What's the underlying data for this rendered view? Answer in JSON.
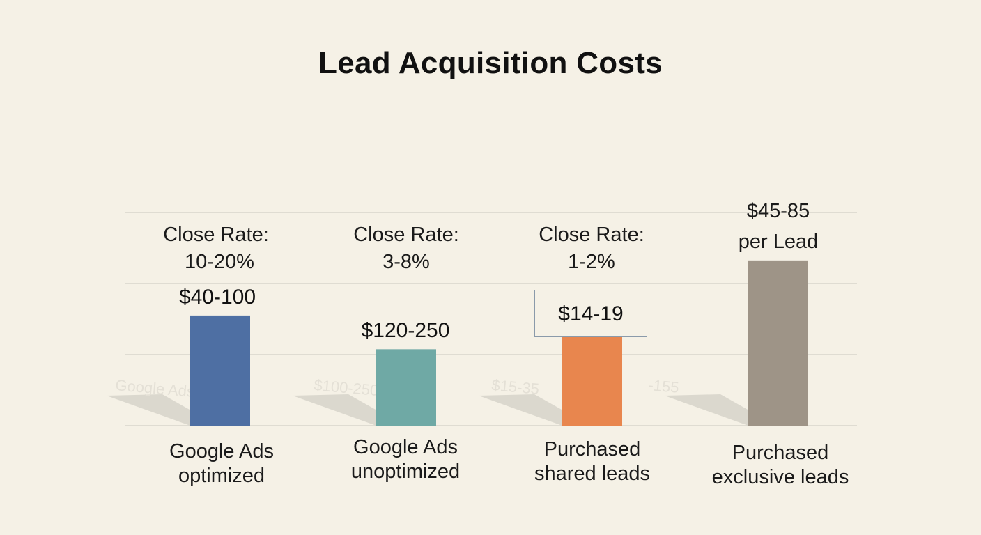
{
  "chart_data": {
    "type": "bar",
    "title": "Lead Acquisition Costs",
    "categories": [
      [
        "Google Ads",
        "optimized"
      ],
      [
        "Google Ads",
        "unoptimized"
      ],
      [
        "Purchased",
        "shared leads"
      ],
      [
        "Purchased",
        "exclusive leads"
      ]
    ],
    "value_labels": [
      "$40-100",
      "$120-250",
      "$14-19",
      "$45-85 per Lead"
    ],
    "annotations": [
      [
        "Close Rate:",
        "10-20%"
      ],
      [
        "Close Rate:",
        "3-8%"
      ],
      [
        "Close Rate:",
        "1-2%"
      ],
      [
        "$45-85",
        "per Lead"
      ]
    ],
    "ghost_labels": [
      "Google Ads",
      "$100-250",
      "$15-35",
      "-155"
    ],
    "values": [
      62,
      43,
      50,
      93
    ],
    "ylim": [
      0,
      120
    ],
    "grid": true,
    "colors": [
      "#4e6fa3",
      "#6fa9a5",
      "#e8864e",
      "#9e9487"
    ],
    "grid_color": "#d8d5cc",
    "shadow_color": "#d5d2c8"
  }
}
